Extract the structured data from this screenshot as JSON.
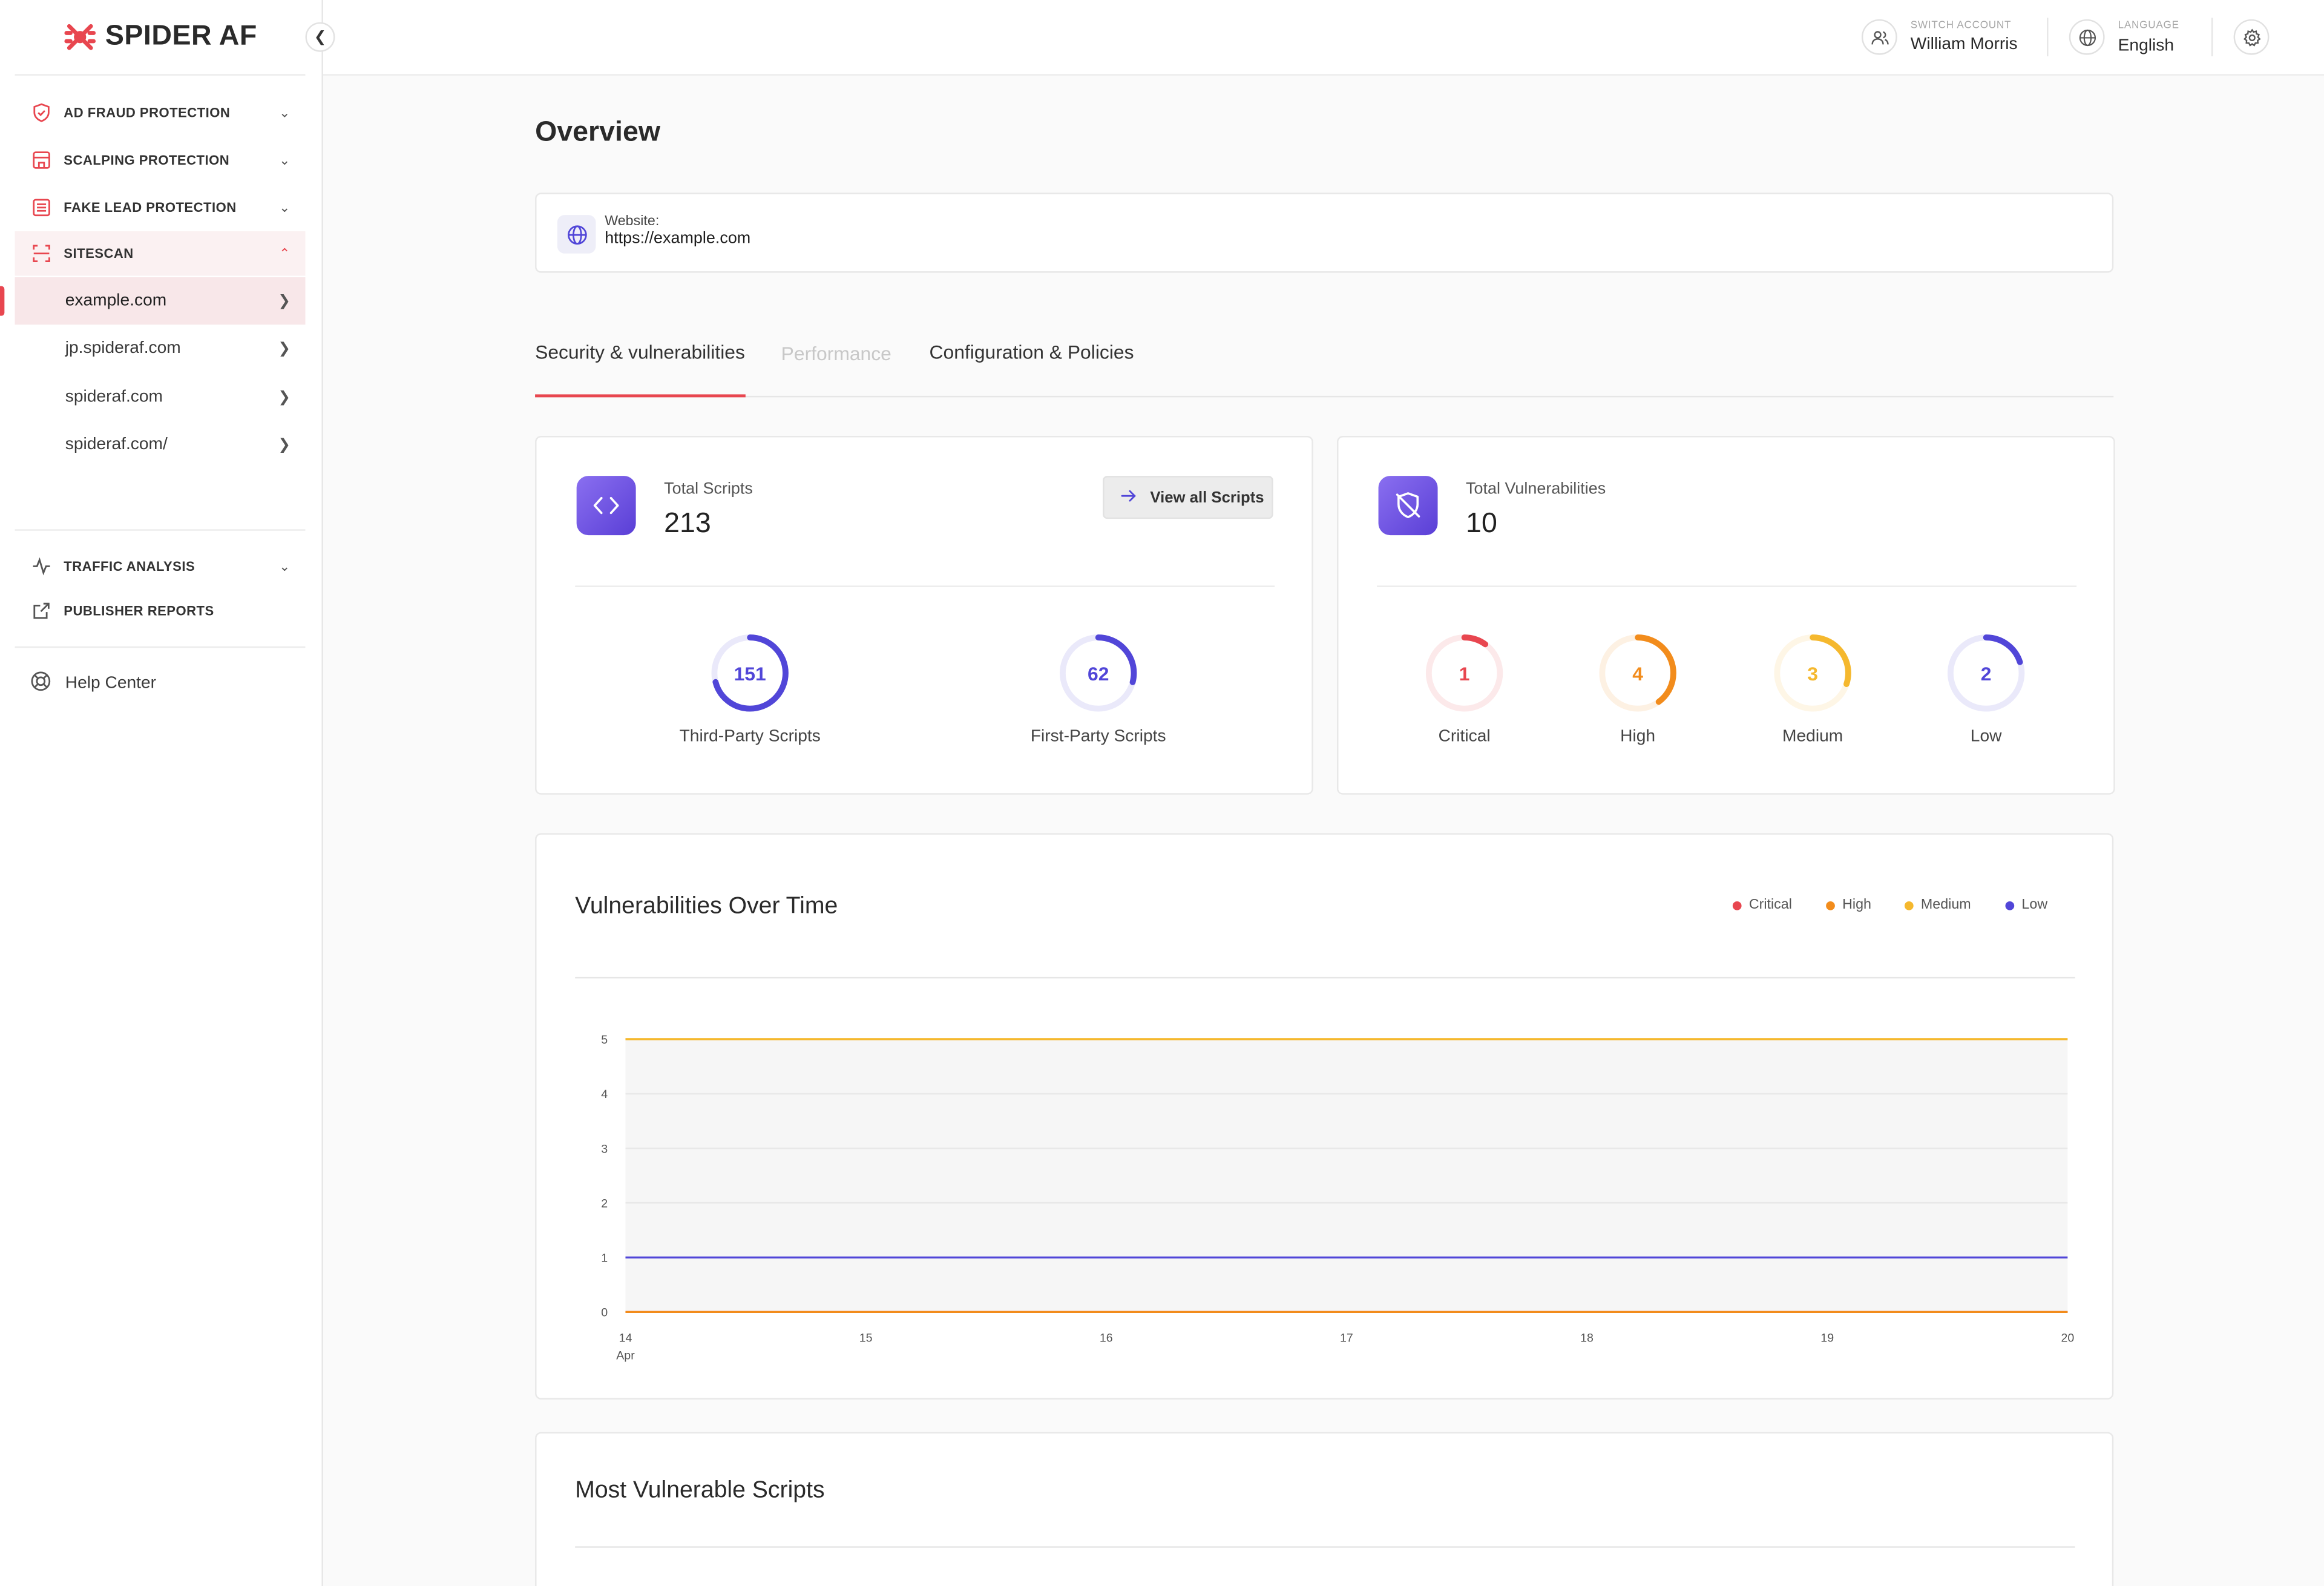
{
  "brand": {
    "name": "SPIDER AF",
    "color": "#e8464f"
  },
  "sidebar": {
    "collapse_icon": "chevron-left-icon",
    "nav": [
      {
        "label": "AD FRAUD PROTECTION",
        "icon": "shield-check-icon",
        "expanded": false
      },
      {
        "label": "SCALPING PROTECTION",
        "icon": "store-icon",
        "expanded": false
      },
      {
        "label": "FAKE LEAD PROTECTION",
        "icon": "form-icon",
        "expanded": false
      },
      {
        "label": "SITESCAN",
        "icon": "scan-icon",
        "expanded": true
      }
    ],
    "sites": [
      {
        "label": "example.com",
        "active": true
      },
      {
        "label": "jp.spideraf.com",
        "active": false
      },
      {
        "label": "spideraf.com",
        "active": false
      },
      {
        "label": "spideraf.com/",
        "active": false
      }
    ],
    "extra": [
      {
        "label": "TRAFFIC ANALYSIS",
        "icon": "activity-icon"
      },
      {
        "label": "PUBLISHER REPORTS",
        "icon": "external-link-icon"
      }
    ],
    "help": {
      "label": "Help Center",
      "icon": "lifebuoy-icon"
    }
  },
  "topbar": {
    "account": {
      "caption": "SWITCH ACCOUNT",
      "value": "William Morris",
      "icon": "users-icon"
    },
    "language": {
      "caption": "LANGUAGE",
      "value": "English",
      "icon": "globe-icon"
    },
    "settings_icon": "gear-icon"
  },
  "main": {
    "title": "Overview",
    "website": {
      "label": "Website:",
      "url": "https://example.com",
      "icon": "globe-icon"
    },
    "tabs": [
      {
        "label": "Security & vulnerabilities",
        "active": true,
        "disabled": false
      },
      {
        "label": "Performance",
        "active": false,
        "disabled": true
      },
      {
        "label": "Configuration & Policies",
        "active": false,
        "disabled": false
      }
    ]
  },
  "scripts": {
    "label": "Total Scripts",
    "total": "213",
    "button": "View all Scripts",
    "icon": "code-icon",
    "rings": [
      {
        "value": 151,
        "label": "Third-Party Scripts",
        "fraction": 0.709,
        "color": "#5146d8"
      },
      {
        "value": 62,
        "label": "First-Party Scripts",
        "fraction": 0.291,
        "color": "#5146d8"
      }
    ]
  },
  "vulnerabilities": {
    "label": "Total Vulnerabilities",
    "total": "10",
    "icon": "shield-off-icon",
    "rings": [
      {
        "value": 1,
        "label": "Critical",
        "fraction": 0.1,
        "color": "#e8464f"
      },
      {
        "value": 4,
        "label": "High",
        "fraction": 0.4,
        "color": "#f28c1c"
      },
      {
        "value": 3,
        "label": "Medium",
        "fraction": 0.3,
        "color": "#f5b82e"
      },
      {
        "value": 2,
        "label": "Low",
        "fraction": 0.2,
        "color": "#5146d8"
      }
    ]
  },
  "chart": {
    "title": "Vulnerabilities Over Time"
  },
  "chart_data": {
    "type": "line",
    "title": "Vulnerabilities Over Time",
    "x": [
      "14",
      "15",
      "16",
      "17",
      "18",
      "19",
      "20"
    ],
    "x_sublabel": "Apr",
    "ylim": [
      0,
      5
    ],
    "yticks": [
      0,
      1,
      2,
      3,
      4,
      5
    ],
    "grid": true,
    "legend_position": "top-right",
    "series": [
      {
        "name": "Critical",
        "color": "#e8464f",
        "values": [
          0,
          0,
          0,
          0,
          0,
          0,
          0
        ]
      },
      {
        "name": "High",
        "color": "#f28c1c",
        "values": [
          0,
          0,
          0,
          0,
          0,
          0,
          0
        ]
      },
      {
        "name": "Medium",
        "color": "#f5b82e",
        "values": [
          5,
          5,
          5,
          5,
          5,
          5,
          5
        ]
      },
      {
        "name": "Low",
        "color": "#5146d8",
        "values": [
          1,
          1,
          1,
          1,
          1,
          1,
          1
        ]
      }
    ]
  },
  "most_vulnerable": {
    "title": "Most Vulnerable Scripts"
  }
}
